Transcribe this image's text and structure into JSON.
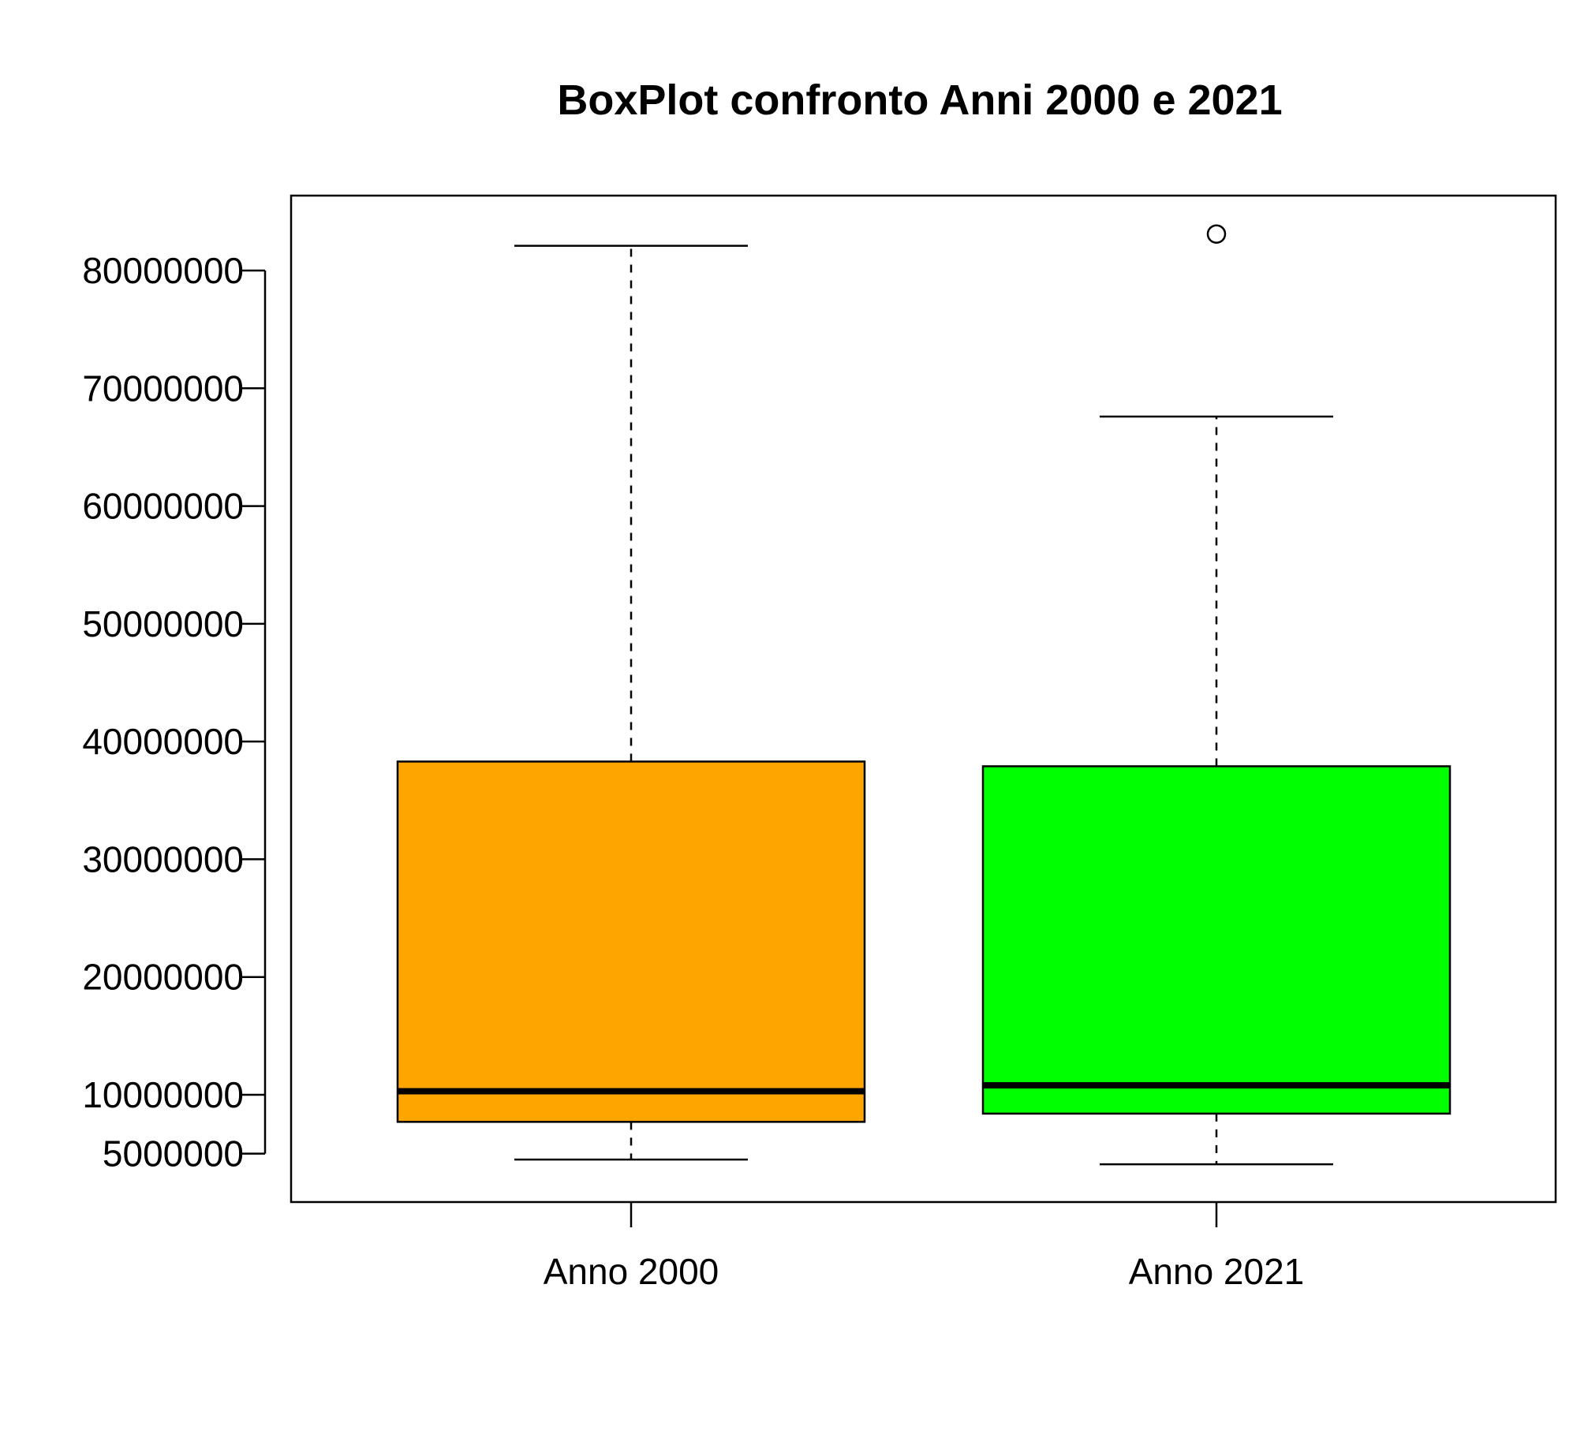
{
  "chart_data": {
    "type": "boxplot",
    "title": "BoxPlot confronto Anni 2000 e 2021",
    "xlabel": "",
    "ylabel": "",
    "ylim": [
      2000000,
      87000000
    ],
    "yticks": [
      5000000,
      10000000,
      20000000,
      30000000,
      40000000,
      50000000,
      60000000,
      70000000,
      80000000
    ],
    "ytick_labels": [
      "5000000",
      "10000000",
      "20000000",
      "30000000",
      "40000000",
      "50000000",
      "60000000",
      "70000000",
      "80000000"
    ],
    "categories": [
      "Anno 2000",
      "Anno 2021"
    ],
    "boxes": [
      {
        "label": "Anno 2000",
        "color": "#FFA500",
        "whisker_low": 4500000,
        "q1": 7700000,
        "median": 10300000,
        "q3": 38300000,
        "whisker_high": 82100000,
        "outliers": []
      },
      {
        "label": "Anno 2021",
        "color": "#00FF00",
        "whisker_low": 4100000,
        "q1": 8400000,
        "median": 10800000,
        "q3": 37900000,
        "whisker_high": 67600000,
        "outliers": [
          83100000
        ]
      }
    ],
    "grid": false,
    "legend": "none"
  }
}
